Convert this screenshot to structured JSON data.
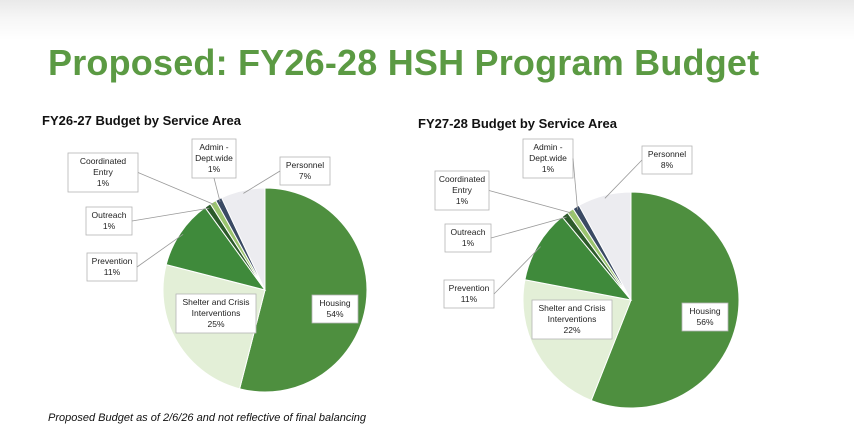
{
  "slide": {
    "title": "Proposed: FY26-28 HSH Program Budget",
    "footnote": "Proposed Budget as of 2/6/26 and not reflective of final balancing"
  },
  "colors": {
    "title": "#5b9a43",
    "Housing": "#4e8f3f",
    "Shelter and Crisis Interventions": "#e3efd7",
    "Prevention": "#3f8a3b",
    "Outreach": "#2d5b2b",
    "Coordinated Entry": "#9bc46f",
    "Admin - Dept.wide": "#3a4a63",
    "Personnel": "#ececf0"
  },
  "chart_data": [
    {
      "type": "pie",
      "title": "FY26-27 Budget by Service Area",
      "slices": [
        {
          "label": "Housing",
          "label_lines": [
            "Housing"
          ],
          "value": 54,
          "display": "54%"
        },
        {
          "label": "Shelter and Crisis Interventions",
          "label_lines": [
            "Shelter and Crisis",
            "Interventions"
          ],
          "value": 25,
          "display": "25%"
        },
        {
          "label": "Prevention",
          "label_lines": [
            "Prevention"
          ],
          "value": 11,
          "display": "11%"
        },
        {
          "label": "Outreach",
          "label_lines": [
            "Outreach"
          ],
          "value": 1,
          "display": "1%"
        },
        {
          "label": "Coordinated Entry",
          "label_lines": [
            "Coordinated",
            "Entry"
          ],
          "value": 1,
          "display": "1%"
        },
        {
          "label": "Admin - Dept.wide",
          "label_lines": [
            "Admin -",
            "Dept.wide"
          ],
          "value": 1,
          "display": "1%"
        },
        {
          "label": "Personnel",
          "label_lines": [
            "Personnel"
          ],
          "value": 7,
          "display": "7%"
        }
      ]
    },
    {
      "type": "pie",
      "title": "FY27-28 Budget by Service Area",
      "slices": [
        {
          "label": "Housing",
          "label_lines": [
            "Housing"
          ],
          "value": 56,
          "display": "56%"
        },
        {
          "label": "Shelter and Crisis Interventions",
          "label_lines": [
            "Shelter and Crisis",
            "Interventions"
          ],
          "value": 22,
          "display": "22%"
        },
        {
          "label": "Prevention",
          "label_lines": [
            "Prevention"
          ],
          "value": 11,
          "display": "11%"
        },
        {
          "label": "Outreach",
          "label_lines": [
            "Outreach"
          ],
          "value": 1,
          "display": "1%"
        },
        {
          "label": "Coordinated Entry",
          "label_lines": [
            "Coordinated",
            "Entry"
          ],
          "value": 1,
          "display": "1%"
        },
        {
          "label": "Admin - Dept.wide",
          "label_lines": [
            "Admin -",
            "Dept.wide"
          ],
          "value": 1,
          "display": "1%"
        },
        {
          "label": "Personnel",
          "label_lines": [
            "Personnel"
          ],
          "value": 8,
          "display": "8%"
        }
      ]
    }
  ]
}
